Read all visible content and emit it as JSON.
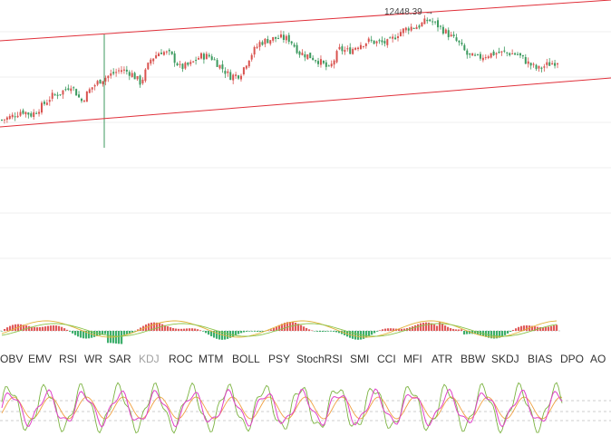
{
  "chart_data": [
    {
      "type": "candlestick",
      "price_label": "12448.39",
      "peak_marker": "→",
      "close_series": [
        11850,
        11870,
        11905,
        11880,
        11930,
        11990,
        12015,
        12060,
        11960,
        12040,
        12090,
        12120,
        12150,
        12130,
        12070,
        12210,
        12260,
        12240,
        12160,
        12180,
        12230,
        12230,
        12170,
        12110,
        12120,
        12230,
        12310,
        12330,
        12340,
        12330,
        12250,
        12230,
        12200,
        12150,
        12270,
        12260,
        12300,
        12320,
        12310,
        12310,
        12370,
        12400,
        12410,
        12448,
        12410,
        12360,
        12310,
        12230,
        12220,
        12240,
        12250,
        12250,
        12240,
        12190,
        12150,
        12180,
        12200
      ],
      "channel_upper": [
        "line",
        [
          0,
          0
        ],
        [
          1,
          1
        ]
      ],
      "colors": {
        "up": "#d9534f",
        "down": "#3c9a5f",
        "channel": "#e0303a"
      }
    },
    {
      "type": "macd",
      "histogram_note": "oscillating histogram with two signal lines",
      "colors": {
        "positive": "#e05a5a",
        "negative": "#3dae6b",
        "dif": "#e2b33a",
        "dea": "#8bc34a"
      }
    },
    {
      "type": "kdj",
      "colors": {
        "k": "#e040c8",
        "d": "#f0a040",
        "j": "#7cb342"
      }
    }
  ],
  "tabs": [
    "OBV",
    "EMV",
    "RSI",
    "WR",
    "SAR",
    "KDJ",
    "ROC",
    "MTM",
    "BOLL",
    "PSY",
    "StochRSI",
    "SMI",
    "CCI",
    "MFI",
    "ATR",
    "BBW",
    "SKDJ",
    "BIAS",
    "DPO",
    "AO"
  ],
  "active_tab": "KDJ"
}
